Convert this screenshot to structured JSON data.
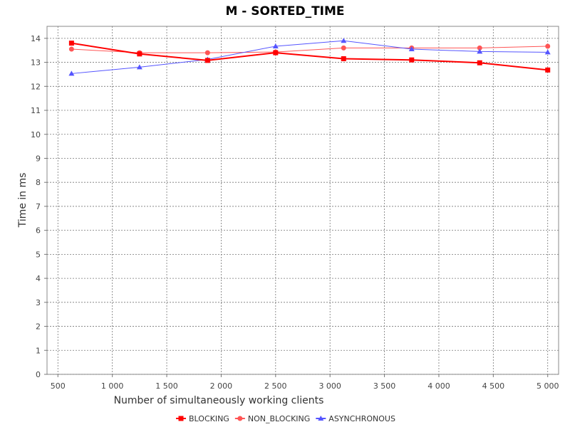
{
  "chart_data": {
    "type": "line",
    "title": "M - SORTED_TIME",
    "xlabel": "Number of simultaneously working clients",
    "ylabel": "Time in ms",
    "xlim": [
      400,
      5100
    ],
    "ylim": [
      0,
      14.5
    ],
    "xticks": [
      500,
      1000,
      1500,
      2000,
      2500,
      3000,
      3500,
      4000,
      4500,
      5000
    ],
    "xtick_labels": [
      "500",
      "1 000",
      "1 500",
      "2 000",
      "2 500",
      "3 000",
      "3 500",
      "4 000",
      "4 500",
      "5 000"
    ],
    "yticks": [
      0,
      1,
      2,
      3,
      4,
      5,
      6,
      7,
      8,
      9,
      10,
      11,
      12,
      13,
      14
    ],
    "ytick_labels": [
      "0",
      "1",
      "2",
      "3",
      "4",
      "5",
      "6",
      "7",
      "8",
      "9",
      "10",
      "11",
      "12",
      "13",
      "14"
    ],
    "grid": true,
    "legend_position": "bottom",
    "x": [
      625,
      1250,
      1875,
      2500,
      3125,
      3750,
      4375,
      5000
    ],
    "series": [
      {
        "name": "BLOCKING",
        "color": "#ff0000",
        "marker": "square",
        "values": [
          13.8,
          13.35,
          13.08,
          13.4,
          13.15,
          13.1,
          12.98,
          12.68
        ]
      },
      {
        "name": "NON_BLOCKING",
        "color": "#ff5555",
        "marker": "circle",
        "values": [
          13.55,
          13.4,
          13.4,
          13.43,
          13.6,
          13.6,
          13.6,
          13.67
        ]
      },
      {
        "name": "ASYNCHRONOUS",
        "color": "#5555ff",
        "marker": "triangle",
        "values": [
          12.53,
          12.8,
          13.12,
          13.67,
          13.9,
          13.55,
          13.45,
          13.42
        ]
      }
    ]
  }
}
